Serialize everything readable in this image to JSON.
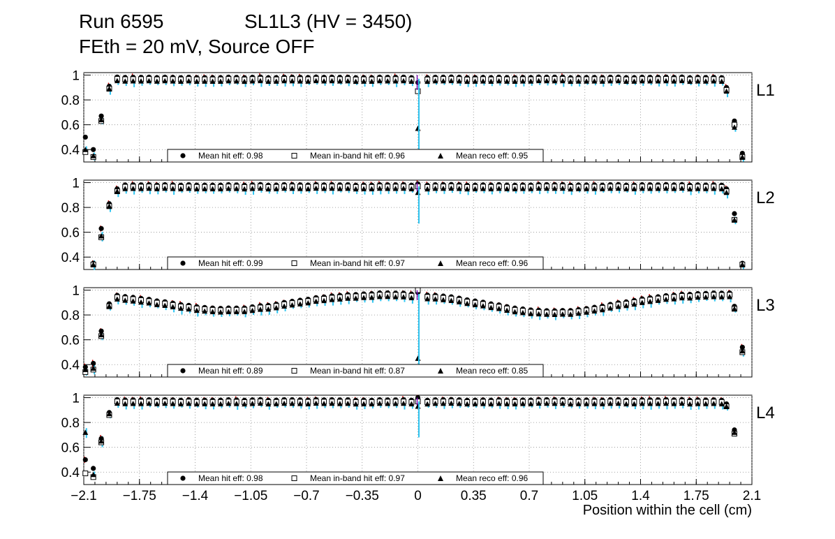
{
  "header": {
    "run": "Run 6595",
    "chamber": "SL1L3 (HV = 3450)",
    "conditions": "FEth = 20 mV, Source OFF"
  },
  "colors": {
    "hit_marker": "#000000",
    "inband_marker": "#000000",
    "reco_marker": "#000000",
    "error_bar_hit": "#cc0000",
    "error_bar_inband": "#7a0ab8",
    "error_bar_reco": "#2ec4f0",
    "grid": "#888888"
  },
  "chart_data": {
    "type": "scatter",
    "xlabel": "Position within the cell (cm)",
    "xlim": [
      -2.1,
      2.1
    ],
    "ylim": [
      0.3,
      1.02
    ],
    "x_ticks": [
      "−2.1",
      "−1.75",
      "−1.4",
      "−1.05",
      "−0.7",
      "−0.35",
      "0",
      "0.35",
      "0.7",
      "1.05",
      "1.4",
      "1.75",
      "2.1"
    ],
    "y_ticks": [
      "0.4",
      "0.6",
      "0.8",
      "1"
    ],
    "legend_labels": [
      "Mean hit  eff: ",
      "Mean in-band hit eff: ",
      "Mean reco eff: "
    ],
    "panels": [
      {
        "layer": "L1",
        "mean_hit_eff": "0.98",
        "mean_inband_eff": "0.96",
        "mean_reco_eff": "0.95",
        "edges": [
          {
            "x": -2.09,
            "hit": 0.5,
            "inband": 0.38,
            "reco": 0.4
          },
          {
            "x": -2.04,
            "hit": 0.4,
            "inband": 0.34,
            "reco": 0.35
          },
          {
            "x": -1.99,
            "hit": 0.67,
            "inband": 0.63,
            "reco": 0.64
          },
          {
            "x": -1.94,
            "hit": 0.91,
            "inband": 0.89,
            "reco": 0.89
          },
          {
            "x": 1.94,
            "hit": 0.9,
            "inband": 0.88,
            "reco": 0.87
          },
          {
            "x": 1.99,
            "hit": 0.63,
            "inband": 0.6,
            "reco": 0.58
          },
          {
            "x": 2.04,
            "hit": 0.37,
            "inband": 0.34,
            "reco": 0.34
          }
        ],
        "mid": {
          "hit": 0.94,
          "inband": 0.87,
          "reco": 0.57
        },
        "dip": 0,
        "dip_center": 0,
        "dip_width": 0.5
      },
      {
        "layer": "L2",
        "mean_hit_eff": "0.99",
        "mean_inband_eff": "0.97",
        "mean_reco_eff": "0.96",
        "edges": [
          {
            "x": -2.04,
            "hit": 0.35,
            "inband": 0.34,
            "reco": 0.34
          },
          {
            "x": -1.99,
            "hit": 0.63,
            "inband": 0.56,
            "reco": 0.57
          },
          {
            "x": -1.94,
            "hit": 0.83,
            "inband": 0.81,
            "reco": 0.81
          },
          {
            "x": -1.89,
            "hit": 0.95,
            "inband": 0.93,
            "reco": 0.93
          },
          {
            "x": 1.94,
            "hit": 0.95,
            "inband": 0.93,
            "reco": 0.92
          },
          {
            "x": 1.99,
            "hit": 0.75,
            "inband": 0.7,
            "reco": 0.7
          },
          {
            "x": 2.04,
            "hit": 0.35,
            "inband": 0.34,
            "reco": 0.34
          }
        ],
        "mid": {
          "hit": 0.99,
          "inband": 0.97,
          "reco": 0.92
        },
        "dip": 0,
        "dip_center": 0,
        "dip_width": 0.5
      },
      {
        "layer": "L3",
        "mean_hit_eff": "0.89",
        "mean_inband_eff": "0.87",
        "mean_reco_eff": "0.85",
        "edges": [
          {
            "x": -2.09,
            "hit": 0.38,
            "inband": 0.34,
            "reco": 0.36
          },
          {
            "x": -2.04,
            "hit": 0.41,
            "inband": 0.36,
            "reco": 0.37
          },
          {
            "x": -1.99,
            "hit": 0.67,
            "inband": 0.63,
            "reco": 0.64
          },
          {
            "x": -1.94,
            "hit": 0.89,
            "inband": 0.87,
            "reco": 0.87
          },
          {
            "x": 1.99,
            "hit": 0.87,
            "inband": 0.85,
            "reco": 0.85
          },
          {
            "x": 2.04,
            "hit": 0.54,
            "inband": 0.5,
            "reco": 0.51
          }
        ],
        "mid": {
          "hit": 0.98,
          "inband": 1.0,
          "reco": 0.45
        },
        "dip": 0.15,
        "dip_center": 0.85,
        "dip_width": 0.55
      },
      {
        "layer": "L4",
        "mean_hit_eff": "0.98",
        "mean_inband_eff": "0.97",
        "mean_reco_eff": "0.96",
        "edges": [
          {
            "x": -2.09,
            "hit": 0.5,
            "inband": 0.39,
            "reco": 0.72
          },
          {
            "x": -2.04,
            "hit": 0.43,
            "inband": 0.36,
            "reco": 0.38
          },
          {
            "x": -1.99,
            "hit": 0.67,
            "inband": 0.64,
            "reco": 0.65
          },
          {
            "x": -1.94,
            "hit": 0.88,
            "inband": 0.86,
            "reco": 0.87
          },
          {
            "x": 1.94,
            "hit": 0.95,
            "inband": 0.93,
            "reco": 0.93
          },
          {
            "x": 1.99,
            "hit": 0.74,
            "inband": 0.71,
            "reco": 0.72
          }
        ],
        "mid": {
          "hit": 1.0,
          "inband": 0.97,
          "reco": 0.93
        },
        "dip": 0,
        "dip_center": 0,
        "dip_width": 0.5
      }
    ]
  }
}
